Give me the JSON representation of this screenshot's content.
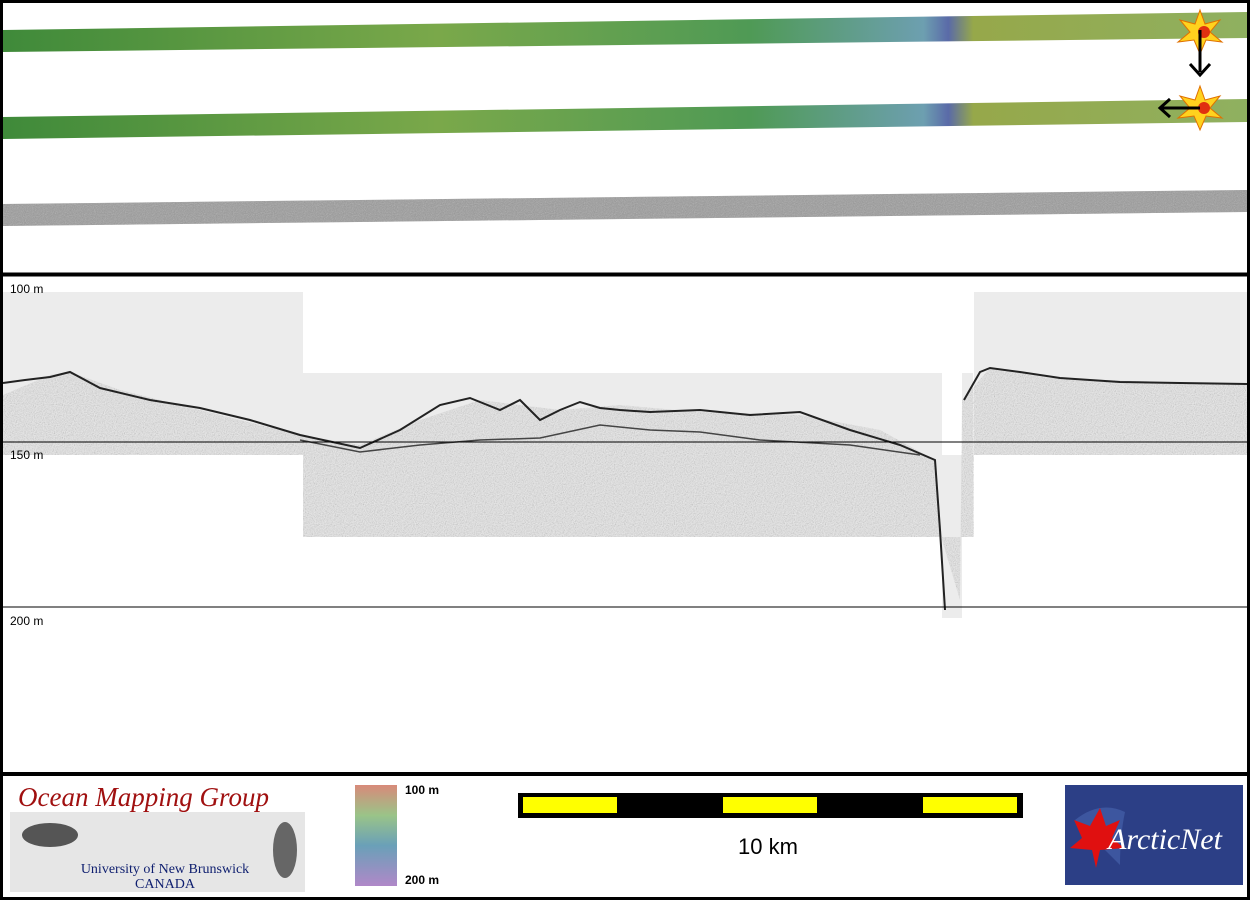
{
  "profile": {
    "depth_labels": [
      "100 m",
      "150 m",
      "200 m"
    ]
  },
  "footer": {
    "logo_title": "Ocean Mapping Group",
    "logo_line1": "University of New Brunswick",
    "logo_line2": "CANADA",
    "colorbar_top": "100 m",
    "colorbar_bottom": "200 m",
    "scale_label": "10 km",
    "partner_logo": "ArcticNet"
  }
}
